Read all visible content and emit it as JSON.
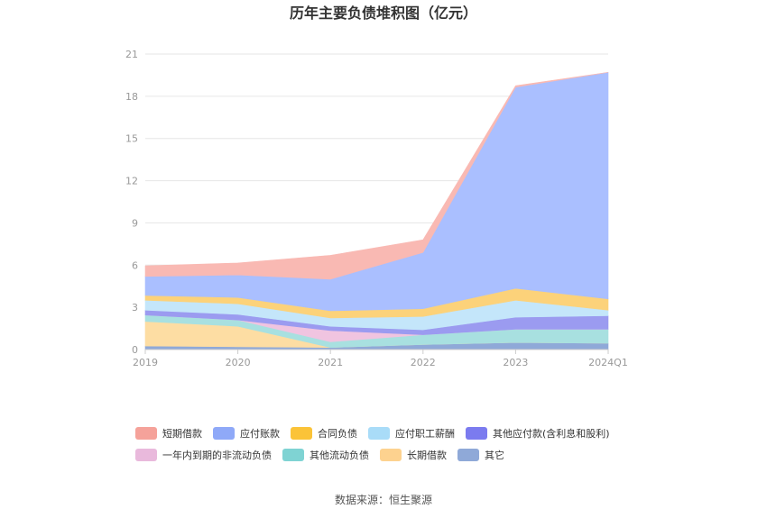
{
  "chart_data": {
    "type": "area",
    "stacked": true,
    "title": "历年主要负债堆积图（亿元）",
    "categories": [
      "2019",
      "2020",
      "2021",
      "2022",
      "2023",
      "2024Q1"
    ],
    "ylim": [
      0,
      21
    ],
    "yticks": [
      "0",
      "3",
      "6",
      "9",
      "12",
      "15",
      "18",
      "21"
    ],
    "grid": true,
    "legend_position": "bottom",
    "series": [
      {
        "name": "其它",
        "color": "#8fa9d8",
        "values": [
          0.25,
          0.2,
          0.15,
          0.35,
          0.5,
          0.45
        ]
      },
      {
        "name": "长期借款",
        "color": "#fddda3",
        "values": [
          1.75,
          1.45,
          0.0,
          0.0,
          0.0,
          0.0
        ]
      },
      {
        "name": "其他流动负债",
        "color": "#a8e0e0",
        "values": [
          0.45,
          0.45,
          0.4,
          0.7,
          0.95,
          1.0
        ]
      },
      {
        "name": "一年内到期的非流动负债",
        "color": "#f0c4e0",
        "values": [
          0.0,
          0.0,
          0.8,
          0.0,
          0.0,
          0.0
        ]
      },
      {
        "name": "其他应付款(含利息和股利)",
        "color": "#9b9bf0",
        "values": [
          0.35,
          0.4,
          0.3,
          0.35,
          0.85,
          0.95
        ]
      },
      {
        "name": "应付职工薪酬",
        "color": "#c4e6fa",
        "values": [
          0.7,
          0.75,
          0.6,
          0.95,
          1.2,
          0.4
        ]
      },
      {
        "name": "合同负债",
        "color": "#fcd27a",
        "values": [
          0.35,
          0.45,
          0.5,
          0.55,
          0.85,
          0.8
        ]
      },
      {
        "name": "应付账款",
        "color": "#aabfff",
        "values": [
          1.35,
          1.6,
          2.25,
          4.0,
          14.3,
          16.1
        ]
      },
      {
        "name": "短期借款",
        "color": "#f9b9b3",
        "values": [
          0.75,
          0.85,
          1.7,
          0.9,
          0.1,
          0.0
        ]
      }
    ],
    "legend": [
      {
        "name": "短期借款",
        "color": "#f5a29a"
      },
      {
        "name": "应付账款",
        "color": "#8fa9f8"
      },
      {
        "name": "合同负债",
        "color": "#fbc338"
      },
      {
        "name": "应付职工薪酬",
        "color": "#a9dcf8"
      },
      {
        "name": "其他应付款(含利息和股利)",
        "color": "#7b7bef"
      },
      {
        "name": "一年内到期的非流动负债",
        "color": "#e9b9dc"
      },
      {
        "name": "其他流动负债",
        "color": "#7fd3d3"
      },
      {
        "name": "长期借款",
        "color": "#fdd28f"
      },
      {
        "name": "其它",
        "color": "#8fa9d8"
      }
    ]
  },
  "source_text": "数据来源：恒生聚源"
}
